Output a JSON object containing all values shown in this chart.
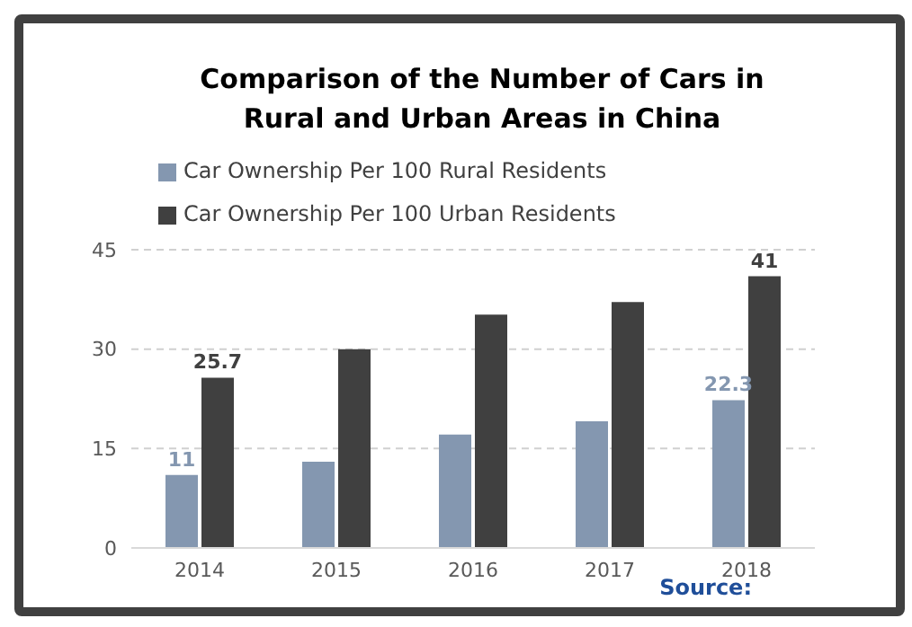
{
  "chart_data": {
    "type": "bar",
    "title": "Comparison of the Number of Cars in Rural and Urban Areas in China",
    "categories": [
      "2014",
      "2015",
      "2016",
      "2017",
      "2018"
    ],
    "series": [
      {
        "name": "Car Ownership Per 100 Rural Residents",
        "color": "#8497b0",
        "values": [
          11,
          13,
          17.1,
          19.1,
          22.3
        ],
        "value_labels": [
          "11",
          null,
          null,
          null,
          "22.3"
        ]
      },
      {
        "name": "Car Ownership Per 100 Urban Residents",
        "color": "#404040",
        "values": [
          25.7,
          30,
          35.2,
          37.1,
          41
        ],
        "value_labels": [
          "25.7",
          null,
          null,
          null,
          "41"
        ]
      }
    ],
    "ylim": [
      0,
      45
    ],
    "yticks": [
      0,
      15,
      30,
      45
    ],
    "grid": "y",
    "legend": "top left",
    "annotations": [
      "Source:"
    ]
  }
}
